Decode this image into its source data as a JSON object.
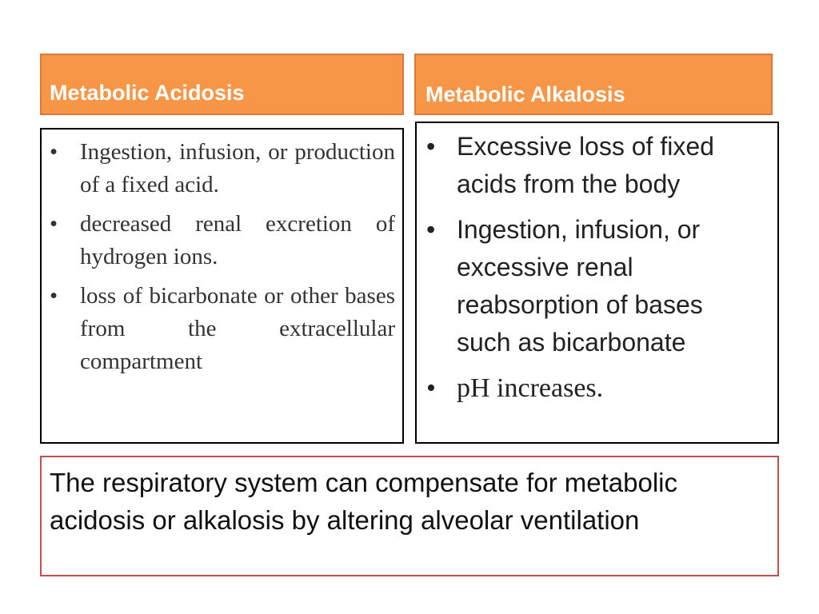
{
  "columns": {
    "left": {
      "header": "Metabolic Acidosis",
      "items": [
        "Ingestion, infusion, or production of a fixed acid.",
        "decreased renal excretion of hydrogen ions.",
        "loss of bicarbonate or other bases from the extracellular compartment"
      ]
    },
    "right": {
      "header": "Metabolic Alkalosis",
      "items": [
        "Excessive loss of fixed acids from the body",
        "Ingestion, infusion, or excessive renal reabsorption of bases such as bicarbonate",
        "pH increases."
      ]
    }
  },
  "bullet": "•",
  "note": "The respiratory system can compensate for metabolic acidosis or alkalosis by altering alveolar ventilation",
  "colors": {
    "header_fill": "#f79646",
    "note_border": "#c0504d"
  }
}
